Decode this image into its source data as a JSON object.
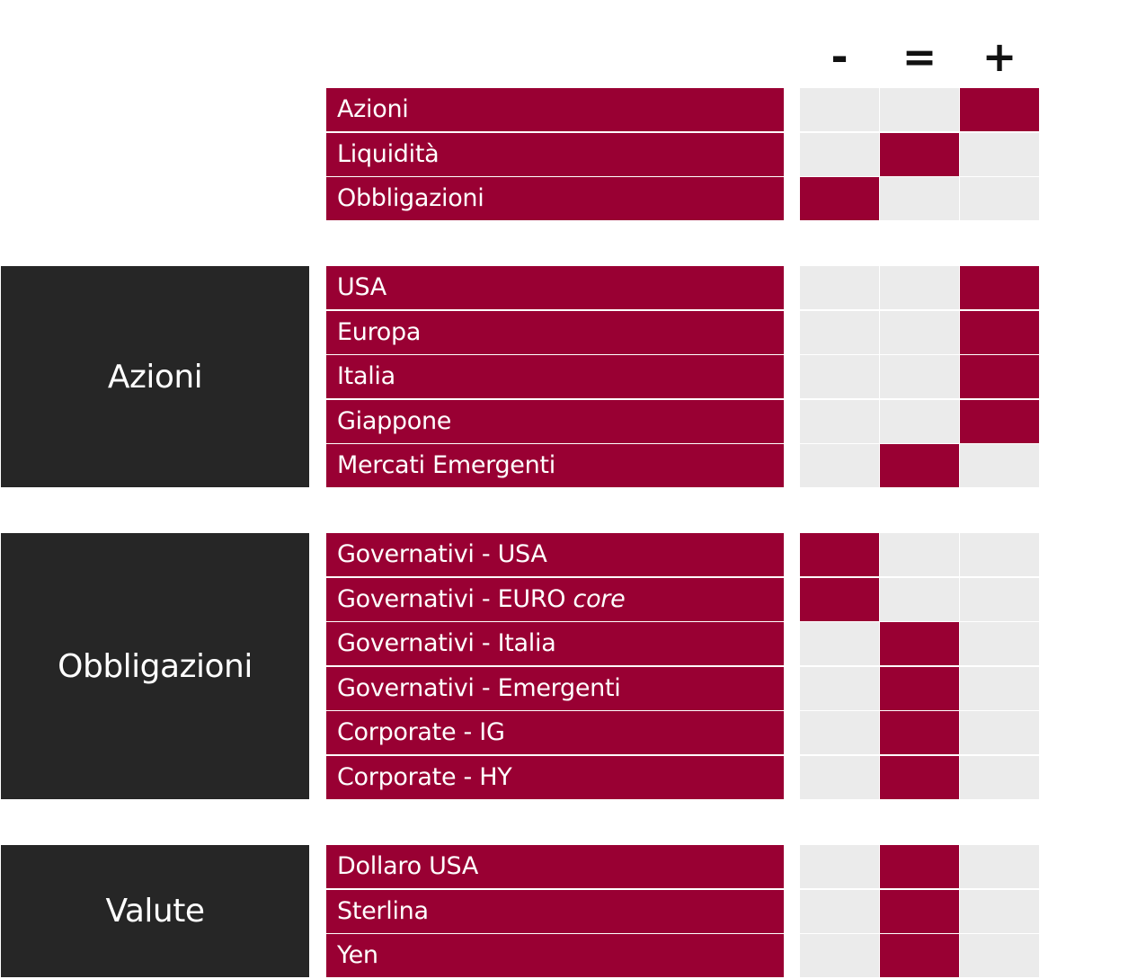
{
  "columns": [
    "-",
    "=",
    "+"
  ],
  "colors": {
    "label_bg": "#990033",
    "group_bg": "#262626",
    "cell_off": "#ebebeb",
    "cell_on": "#990033"
  },
  "sections": [
    {
      "group": "",
      "rows": [
        {
          "label": "Azioni",
          "value": "+"
        },
        {
          "label": "Liquidità",
          "value": "="
        },
        {
          "label": "Obbligazioni",
          "value": "-"
        }
      ]
    },
    {
      "group": "Azioni",
      "rows": [
        {
          "label": "USA",
          "value": "+"
        },
        {
          "label": "Europa",
          "value": "+"
        },
        {
          "label": "Italia",
          "value": "+"
        },
        {
          "label": "Giappone",
          "value": "+"
        },
        {
          "label": "Mercati Emergenti",
          "value": "="
        }
      ]
    },
    {
      "group": "Obbligazioni",
      "rows": [
        {
          "label": "Governativi - USA",
          "value": "-"
        },
        {
          "label": "Governativi - EURO",
          "label_em": "core",
          "value": "-"
        },
        {
          "label": "Governativi - Italia",
          "value": "="
        },
        {
          "label": "Governativi - Emergenti",
          "value": "="
        },
        {
          "label": "Corporate - IG",
          "value": "="
        },
        {
          "label": "Corporate - HY",
          "value": "="
        }
      ]
    },
    {
      "group": "Valute",
      "rows": [
        {
          "label": "Dollaro USA",
          "value": "="
        },
        {
          "label": "Sterlina",
          "value": "="
        },
        {
          "label": "Yen",
          "value": "="
        }
      ]
    }
  ]
}
